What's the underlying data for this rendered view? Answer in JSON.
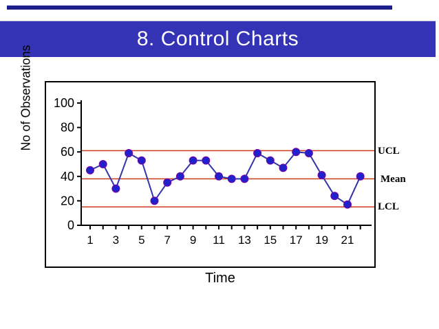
{
  "header": {
    "title": "8. Control Charts"
  },
  "colors": {
    "top_strip": "#1f1f8c",
    "header_bg": "#3533b5",
    "header_text": "#ffffff",
    "frame": "#000000",
    "axis": "#000000",
    "control_line": "#cc3a1e",
    "series_line": "#3333aa",
    "marker_fill": "#2121cc",
    "marker_stroke": "#7a00a0"
  },
  "chart_data": {
    "type": "line",
    "title": "",
    "xlabel": "Time",
    "ylabel": "No of Observations",
    "x": [
      1,
      2,
      3,
      4,
      5,
      6,
      7,
      8,
      9,
      10,
      11,
      12,
      13,
      14,
      15,
      16,
      17,
      18,
      19,
      20,
      21,
      22
    ],
    "values": [
      45,
      50,
      30,
      59,
      53,
      20,
      35,
      40,
      53,
      53,
      40,
      38,
      38,
      59,
      53,
      47,
      60,
      59,
      41,
      24,
      17,
      40
    ],
    "ylim": [
      0,
      100
    ],
    "yticks": [
      0,
      20,
      40,
      60,
      80,
      100
    ],
    "xticks_labeled": [
      1,
      3,
      5,
      7,
      9,
      11,
      13,
      15,
      17,
      19,
      21
    ],
    "xtick_labels": [
      "1",
      "3",
      "5",
      "7",
      "9",
      "11",
      "13",
      "15",
      "17",
      "19",
      "21"
    ],
    "grid": false,
    "legend_position": "none",
    "reference_lines": [
      {
        "label": "UCL",
        "value": 61
      },
      {
        "label": "Mean",
        "value": 38
      },
      {
        "label": "LCL",
        "value": 15
      }
    ]
  }
}
